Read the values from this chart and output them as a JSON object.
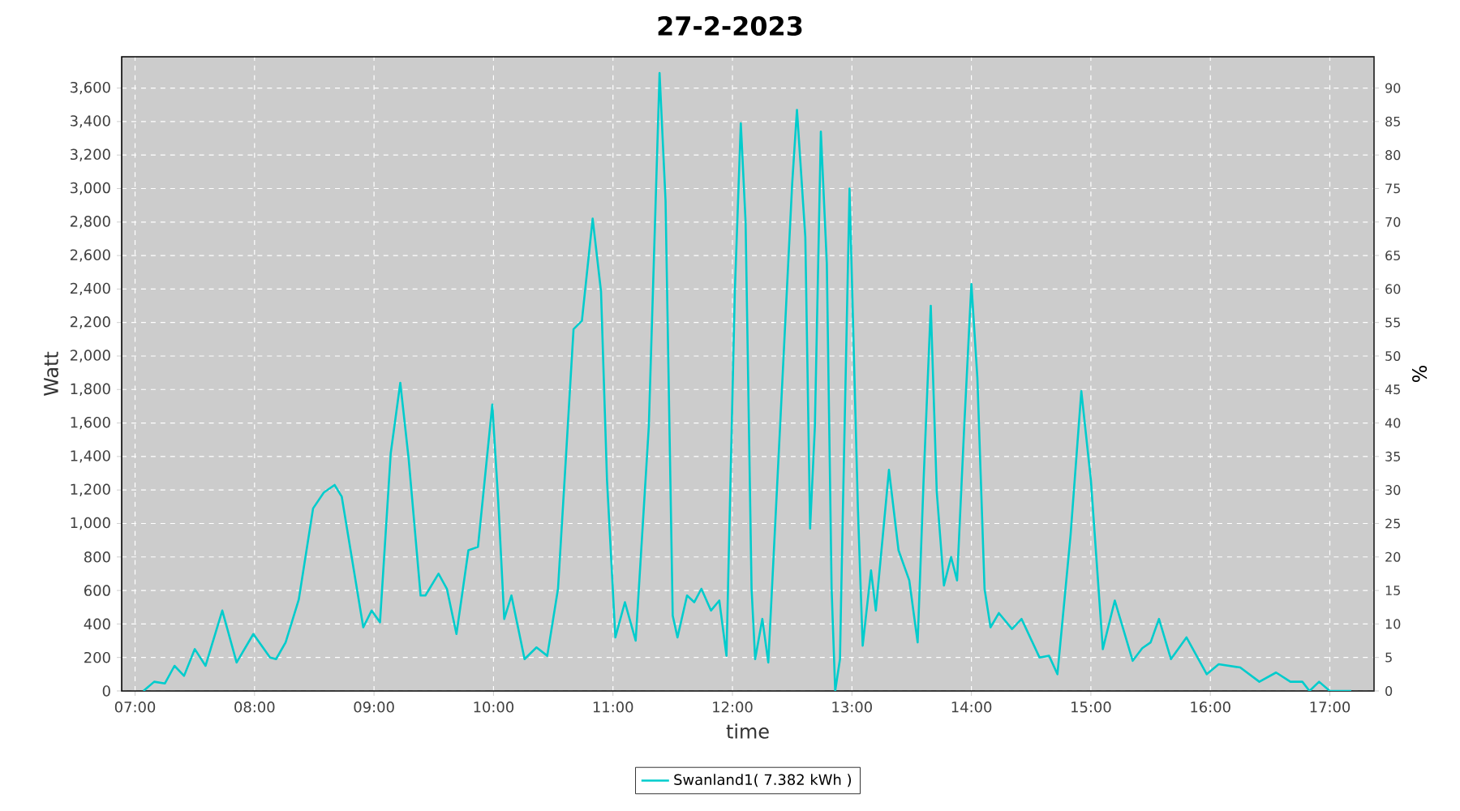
{
  "chart_data": {
    "type": "line",
    "title": "27-2-2023",
    "xlabel": "time",
    "ylabel": "Watt",
    "y2label": "%",
    "xlim": [
      6.888,
      17.37
    ],
    "ylim": [
      0,
      3787
    ],
    "y2lim": [
      0,
      94.67
    ],
    "xticks": [
      {
        "value": 7,
        "label": "07:00"
      },
      {
        "value": 8,
        "label": "08:00"
      },
      {
        "value": 9,
        "label": "09:00"
      },
      {
        "value": 10,
        "label": "10:00"
      },
      {
        "value": 11,
        "label": "11:00"
      },
      {
        "value": 12,
        "label": "12:00"
      },
      {
        "value": 13,
        "label": "13:00"
      },
      {
        "value": 14,
        "label": "14:00"
      },
      {
        "value": 15,
        "label": "15:00"
      },
      {
        "value": 16,
        "label": "16:00"
      },
      {
        "value": 17,
        "label": "17:00"
      }
    ],
    "yticks": [
      0,
      200,
      400,
      600,
      800,
      {
        "value": 1000,
        "label": "1,000"
      },
      {
        "value": 1200,
        "label": "1,200"
      },
      {
        "value": 1400,
        "label": "1,400"
      },
      {
        "value": 1600,
        "label": "1,600"
      },
      {
        "value": 1800,
        "label": "1,800"
      },
      {
        "value": 2000,
        "label": "2,000"
      },
      {
        "value": 2200,
        "label": "2,200"
      },
      {
        "value": 2400,
        "label": "2,400"
      },
      {
        "value": 2600,
        "label": "2,600"
      },
      {
        "value": 2800,
        "label": "2,800"
      },
      {
        "value": 3000,
        "label": "3,000"
      },
      {
        "value": 3200,
        "label": "3,200"
      },
      {
        "value": 3400,
        "label": "3,400"
      },
      {
        "value": 3600,
        "label": "3,600"
      }
    ],
    "y2ticks": [
      0,
      5,
      10,
      15,
      20,
      25,
      30,
      35,
      40,
      45,
      50,
      55,
      60,
      65,
      70,
      75,
      80,
      85,
      90
    ],
    "grid": true,
    "legend": "bottom",
    "marker": "none",
    "line_style": "solid",
    "series": [
      {
        "name": "Swanland1( 7.382 kWh )",
        "color": "#00cccc",
        "x": [
          7.07,
          7.16,
          7.25,
          7.33,
          7.41,
          7.5,
          7.59,
          7.73,
          7.85,
          7.99,
          8.13,
          8.18,
          8.26,
          8.37,
          8.49,
          8.58,
          8.67,
          8.73,
          8.82,
          8.91,
          8.98,
          9.05,
          9.14,
          9.22,
          9.29,
          9.39,
          9.43,
          9.54,
          9.61,
          9.69,
          9.79,
          9.87,
          9.99,
          10.04,
          10.09,
          10.15,
          10.26,
          10.36,
          10.45,
          10.54,
          10.6,
          10.67,
          10.74,
          10.83,
          10.9,
          10.95,
          11.02,
          11.1,
          11.19,
          11.3,
          11.39,
          11.44,
          11.5,
          11.54,
          11.62,
          11.68,
          11.74,
          11.82,
          11.89,
          11.95,
          12.02,
          12.07,
          12.11,
          12.16,
          12.19,
          12.25,
          12.3,
          12.41,
          12.5,
          12.54,
          12.61,
          12.65,
          12.69,
          12.74,
          12.79,
          12.83,
          12.86,
          12.9,
          12.92,
          12.98,
          13.05,
          13.09,
          13.16,
          13.2,
          13.31,
          13.39,
          13.48,
          13.55,
          13.6,
          13.66,
          13.71,
          13.77,
          13.83,
          13.88,
          13.94,
          14.0,
          14.05,
          14.11,
          14.16,
          14.23,
          14.34,
          14.42,
          14.57,
          14.65,
          14.72,
          14.83,
          14.92,
          15.0,
          15.1,
          15.2,
          15.35,
          15.43,
          15.5,
          15.57,
          15.67,
          15.8,
          15.97,
          16.07,
          16.25,
          16.41,
          16.55,
          16.67,
          16.77,
          16.83,
          16.91,
          17.0,
          17.18
        ],
        "values": [
          0,
          55,
          45,
          150,
          90,
          250,
          150,
          480,
          170,
          340,
          200,
          190,
          290,
          545,
          1090,
          1185,
          1230,
          1160,
          770,
          380,
          480,
          410,
          1420,
          1840,
          1385,
          570,
          570,
          700,
          610,
          340,
          840,
          860,
          1710,
          1130,
          430,
          570,
          190,
          260,
          210,
          610,
          1320,
          2160,
          2210,
          2820,
          2385,
          1260,
          320,
          530,
          300,
          1580,
          3690,
          2930,
          450,
          320,
          570,
          530,
          610,
          480,
          540,
          210,
          2385,
          3390,
          2800,
          610,
          190,
          430,
          170,
          1740,
          3030,
          3470,
          2710,
          970,
          1580,
          3340,
          2550,
          610,
          0,
          190,
          930,
          3000,
          1090,
          270,
          720,
          480,
          1320,
          840,
          660,
          290,
          1260,
          2300,
          1190,
          630,
          800,
          660,
          1580,
          2430,
          1870,
          610,
          380,
          465,
          370,
          430,
          200,
          210,
          100,
          930,
          1790,
          1260,
          250,
          540,
          180,
          255,
          290,
          430,
          190,
          320,
          100,
          160,
          140,
          55,
          110,
          55,
          55,
          0,
          55,
          0,
          0
        ]
      }
    ]
  }
}
